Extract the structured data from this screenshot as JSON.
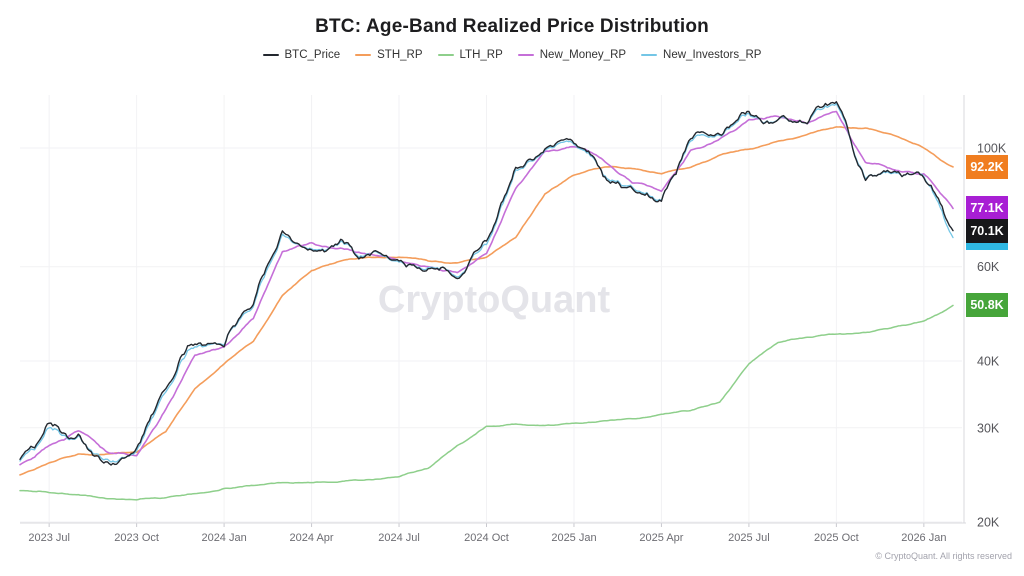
{
  "header": {
    "title": "BTC: Age-Band Realized Price Distribution"
  },
  "watermark": "CryptoQuant",
  "footer": {
    "copyright": "© CryptoQuant. All rights reserved"
  },
  "chart_data": {
    "type": "line",
    "title": "BTC: Age-Band Realized Price Distribution",
    "xlabel": "",
    "ylabel": "",
    "unit": "USD (thousands)",
    "yscale": "log",
    "ylim": [
      19.7,
      126
    ],
    "grid": true,
    "legend_position": "top-center",
    "colors": {
      "background": "#ffffff",
      "grid": "#f2f2f4",
      "axis": "#d9d9de",
      "tick_label": "#6d6d73",
      "y_label": "#55555a",
      "watermark": "#e4e4e9",
      "title": "#1d1d1f"
    },
    "yticks": [
      {
        "value": 100,
        "label": "100K"
      },
      {
        "value": 60,
        "label": "60K"
      },
      {
        "value": 40,
        "label": "40K"
      },
      {
        "value": 30,
        "label": "30K"
      },
      {
        "value": 20,
        "label": "20K"
      }
    ],
    "xticks": [
      "2023 Jul",
      "2023 Oct",
      "2024 Jan",
      "2024 Apr",
      "2024 Jul",
      "2024 Oct",
      "2025 Jan",
      "2025 Apr",
      "2025 Jul",
      "2025 Oct",
      "2026 Jan"
    ],
    "categories": [
      "2023-06",
      "2023-07",
      "2023-08",
      "2023-09",
      "2023-10",
      "2023-11",
      "2023-12",
      "2024-01",
      "2024-02",
      "2024-03",
      "2024-04",
      "2024-05",
      "2024-06",
      "2024-07",
      "2024-08",
      "2024-09",
      "2024-10",
      "2024-11",
      "2024-12",
      "2025-01",
      "2025-02",
      "2025-03",
      "2025-04",
      "2025-05",
      "2025-06",
      "2025-07",
      "2025-08",
      "2025-09",
      "2025-10",
      "2025-11",
      "2025-12",
      "2026-01",
      "2026-02"
    ],
    "series": [
      {
        "name": "BTC_Price",
        "color": "#23282f",
        "last_label": "70.1K",
        "badge_color": "#17171a",
        "values": [
          26.2,
          30.6,
          29.2,
          25.9,
          27.5,
          35.5,
          43.0,
          42.5,
          51.0,
          70.0,
          64.5,
          67.5,
          63.0,
          61.5,
          59.5,
          57.0,
          67.0,
          92.0,
          99.5,
          102.0,
          88.5,
          84.0,
          79.5,
          104.0,
          106.0,
          117.0,
          113.0,
          111.0,
          122.0,
          87.0,
          90.5,
          88.0,
          70.1
        ]
      },
      {
        "name": "STH_RP",
        "color": "#f49d5b",
        "last_label": "92.2K",
        "badge_color": "#f07d1f",
        "values": [
          24.5,
          25.8,
          26.8,
          26.8,
          27.0,
          29.5,
          35.5,
          39.5,
          43.5,
          53.0,
          59.0,
          61.5,
          62.5,
          62.5,
          61.5,
          61.0,
          62.5,
          68.0,
          82.0,
          89.0,
          92.0,
          91.5,
          89.5,
          92.0,
          97.0,
          99.5,
          103.0,
          106.0,
          109.5,
          109.0,
          105.5,
          100.0,
          92.2
        ]
      },
      {
        "name": "LTH_RP",
        "color": "#8ecf8b",
        "last_label": "50.8K",
        "badge_color": "#46a53a",
        "values": [
          22.9,
          22.7,
          22.5,
          22.1,
          22.0,
          22.2,
          22.6,
          23.1,
          23.4,
          23.7,
          23.7,
          23.8,
          24.0,
          24.3,
          25.2,
          27.8,
          30.2,
          30.5,
          30.3,
          30.6,
          30.9,
          31.2,
          31.8,
          32.3,
          33.5,
          39.5,
          43.3,
          44.3,
          44.9,
          45.2,
          46.3,
          47.5,
          50.8
        ]
      },
      {
        "name": "New_Money_RP",
        "color": "#c56fd8",
        "last_label": "77.1K",
        "badge_color": "#a81fd4",
        "values": [
          25.6,
          27.8,
          29.6,
          27.0,
          26.6,
          32.5,
          41.0,
          42.5,
          48.0,
          64.0,
          66.5,
          65.0,
          63.5,
          61.5,
          60.0,
          58.5,
          63.5,
          84.0,
          98.5,
          100.5,
          95.0,
          86.0,
          83.0,
          99.0,
          104.0,
          113.0,
          114.5,
          111.0,
          117.0,
          94.0,
          91.0,
          89.5,
          77.1
        ]
      },
      {
        "name": "New_Investors_RP",
        "color": "#74c6e6",
        "last_label": "",
        "badge_color": "#2fb7e3",
        "values": [
          26.0,
          30.0,
          29.0,
          26.2,
          27.2,
          35.0,
          42.5,
          42.8,
          50.5,
          69.0,
          64.8,
          67.0,
          63.2,
          61.2,
          59.8,
          57.4,
          66.0,
          91.0,
          99.0,
          101.5,
          89.0,
          84.5,
          79.8,
          103.0,
          105.5,
          116.0,
          113.0,
          111.0,
          121.0,
          87.5,
          90.0,
          88.5,
          68.0
        ]
      }
    ]
  }
}
